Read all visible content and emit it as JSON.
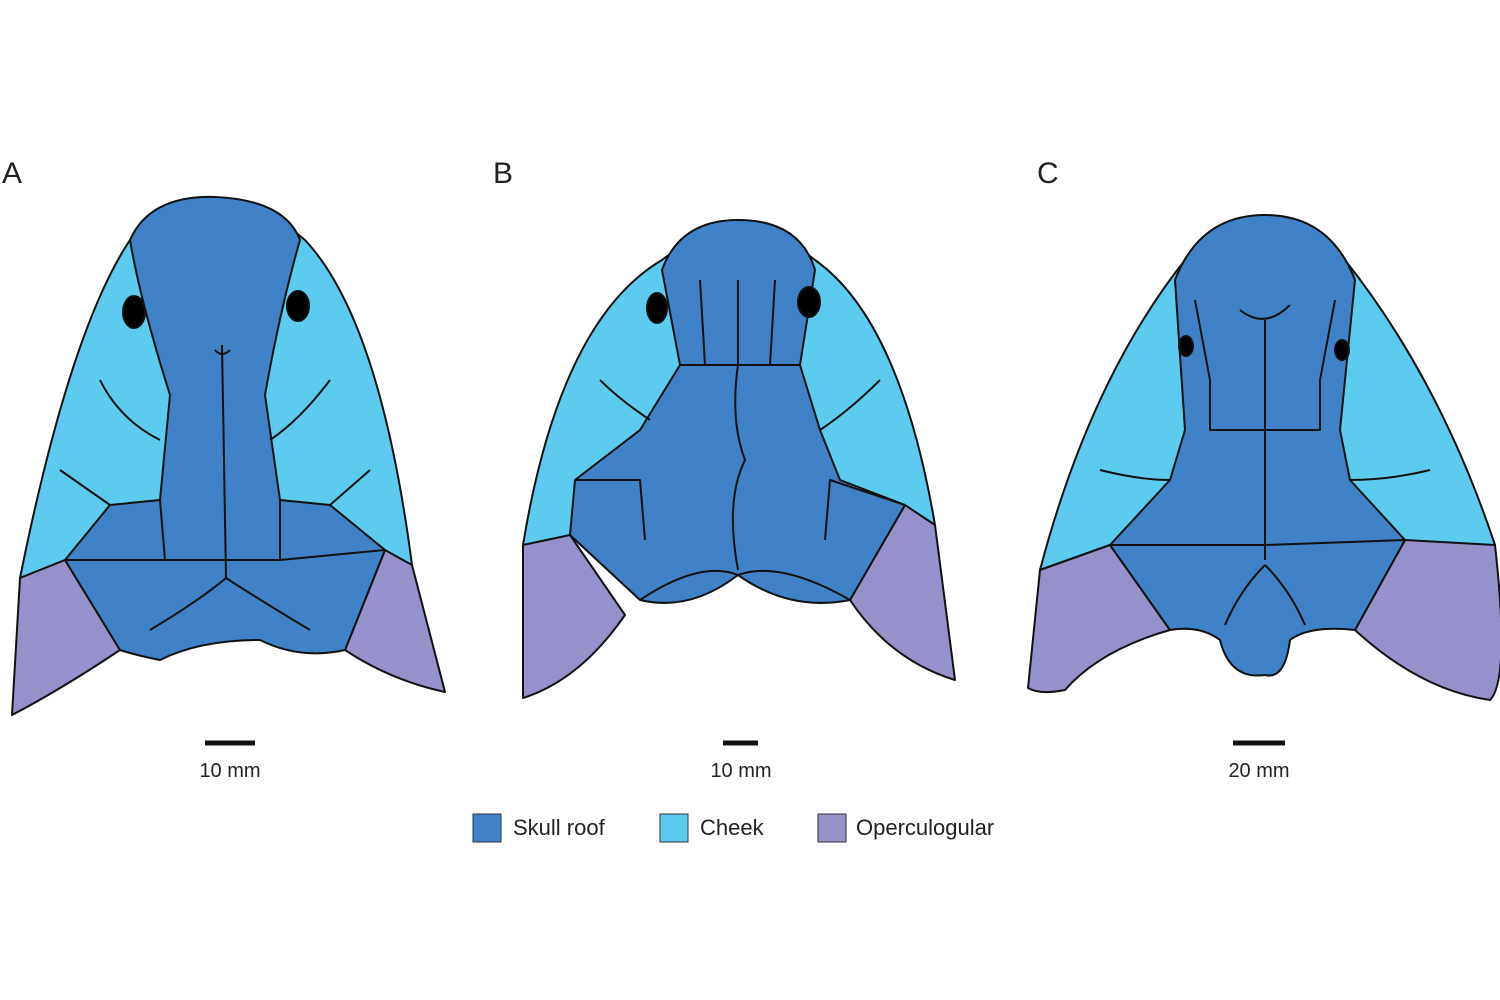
{
  "panels": [
    {
      "label": "A",
      "scale": "10 mm"
    },
    {
      "label": "B",
      "scale": "10 mm"
    },
    {
      "label": "C",
      "scale": "20 mm"
    }
  ],
  "legend": {
    "items": [
      {
        "name": "Skull roof",
        "color": "#3f82c8"
      },
      {
        "name": "Cheek",
        "color": "#5ccbef"
      },
      {
        "name": "Operculogular",
        "color": "#9591cb"
      }
    ]
  }
}
